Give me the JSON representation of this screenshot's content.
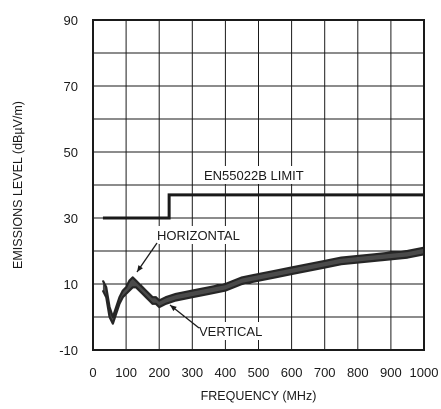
{
  "chart_data": {
    "type": "line",
    "title": "",
    "xlabel": "FREQUENCY (MHz)",
    "ylabel": "EMISSIONS LEVEL (dBµV/m)",
    "xlim": [
      0,
      1000
    ],
    "ylim": [
      -10,
      90
    ],
    "x_ticks": [
      "0",
      "100",
      "200",
      "300",
      "400",
      "500",
      "600",
      "700",
      "800",
      "900",
      "1000"
    ],
    "y_ticks": [
      "-10",
      "10",
      "30",
      "50",
      "70",
      "90"
    ],
    "grid": true,
    "series": [
      {
        "name": "EN55022B LIMIT",
        "step": true,
        "x": [
          30,
          230,
          230,
          1000
        ],
        "values": [
          30,
          30,
          37,
          37
        ]
      },
      {
        "name": "HORIZONTAL",
        "x": [
          30,
          40,
          50,
          60,
          70,
          80,
          90,
          100,
          110,
          120,
          130,
          140,
          150,
          160,
          170,
          180,
          190,
          200,
          220,
          250,
          300,
          350,
          400,
          450,
          500,
          550,
          600,
          650,
          700,
          750,
          800,
          850,
          900,
          950,
          1000
        ],
        "values": [
          11,
          9,
          3,
          0,
          3,
          6,
          8,
          9,
          11,
          12,
          11,
          10,
          9,
          8,
          7,
          6,
          6,
          5,
          6,
          7,
          8,
          9,
          10,
          12,
          13,
          14,
          15,
          16,
          17,
          18,
          18.5,
          19,
          19.5,
          20,
          21
        ]
      },
      {
        "name": "VERTICAL",
        "x": [
          30,
          40,
          50,
          60,
          70,
          80,
          90,
          100,
          110,
          120,
          130,
          140,
          150,
          160,
          170,
          180,
          190,
          200,
          220,
          250,
          300,
          350,
          400,
          450,
          500,
          550,
          600,
          650,
          700,
          750,
          800,
          850,
          900,
          950,
          1000
        ],
        "values": [
          8,
          6,
          0,
          -2,
          1,
          4,
          6,
          7,
          8,
          9,
          9,
          8,
          7,
          6,
          5,
          4,
          4,
          3,
          4,
          5,
          6,
          7,
          8,
          10,
          11,
          12,
          13,
          14,
          15,
          16,
          16.5,
          17,
          17.5,
          18,
          19
        ]
      }
    ],
    "annotations": [
      "EN55022B LIMIT",
      "HORIZONTAL",
      "VERTICAL"
    ]
  }
}
